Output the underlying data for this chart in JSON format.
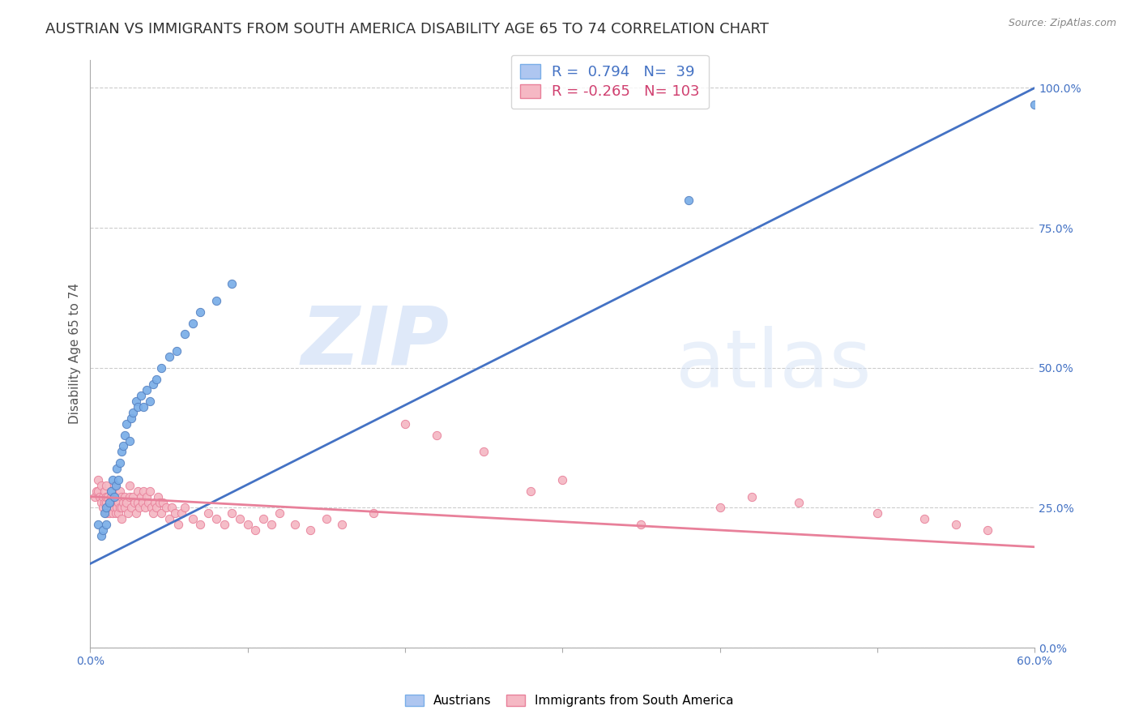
{
  "title": "AUSTRIAN VS IMMIGRANTS FROM SOUTH AMERICA DISABILITY AGE 65 TO 74 CORRELATION CHART",
  "source": "Source: ZipAtlas.com",
  "ylabel": "Disability Age 65 to 74",
  "legend_label1": "Austrians",
  "legend_label2": "Immigrants from South America",
  "watermark_zip": "ZIP",
  "watermark_atlas": "atlas",
  "r_blue": 0.794,
  "n_blue": 39,
  "r_pink": -0.265,
  "n_pink": 103,
  "blue_scatter_x": [
    0.005,
    0.007,
    0.008,
    0.009,
    0.01,
    0.01,
    0.012,
    0.013,
    0.014,
    0.015,
    0.016,
    0.017,
    0.018,
    0.019,
    0.02,
    0.021,
    0.022,
    0.023,
    0.025,
    0.026,
    0.027,
    0.029,
    0.03,
    0.032,
    0.034,
    0.036,
    0.038,
    0.04,
    0.042,
    0.045,
    0.05,
    0.055,
    0.06,
    0.065,
    0.07,
    0.08,
    0.09,
    0.38,
    0.6
  ],
  "blue_scatter_y": [
    0.22,
    0.2,
    0.21,
    0.24,
    0.22,
    0.25,
    0.26,
    0.28,
    0.3,
    0.27,
    0.29,
    0.32,
    0.3,
    0.33,
    0.35,
    0.36,
    0.38,
    0.4,
    0.37,
    0.41,
    0.42,
    0.44,
    0.43,
    0.45,
    0.43,
    0.46,
    0.44,
    0.47,
    0.48,
    0.5,
    0.52,
    0.53,
    0.56,
    0.58,
    0.6,
    0.62,
    0.65,
    0.8,
    0.97
  ],
  "pink_scatter_x": [
    0.003,
    0.004,
    0.005,
    0.005,
    0.006,
    0.007,
    0.007,
    0.008,
    0.008,
    0.009,
    0.009,
    0.01,
    0.01,
    0.01,
    0.01,
    0.011,
    0.011,
    0.012,
    0.012,
    0.013,
    0.013,
    0.014,
    0.014,
    0.015,
    0.015,
    0.015,
    0.016,
    0.016,
    0.017,
    0.017,
    0.018,
    0.018,
    0.019,
    0.019,
    0.02,
    0.02,
    0.02,
    0.021,
    0.022,
    0.022,
    0.023,
    0.024,
    0.025,
    0.025,
    0.026,
    0.027,
    0.028,
    0.029,
    0.03,
    0.03,
    0.031,
    0.032,
    0.033,
    0.034,
    0.035,
    0.036,
    0.037,
    0.038,
    0.039,
    0.04,
    0.041,
    0.042,
    0.043,
    0.044,
    0.045,
    0.046,
    0.048,
    0.05,
    0.052,
    0.054,
    0.056,
    0.058,
    0.06,
    0.065,
    0.07,
    0.075,
    0.08,
    0.085,
    0.09,
    0.095,
    0.1,
    0.105,
    0.11,
    0.115,
    0.12,
    0.13,
    0.14,
    0.15,
    0.16,
    0.18,
    0.2,
    0.22,
    0.25,
    0.28,
    0.3,
    0.35,
    0.4,
    0.42,
    0.45,
    0.5,
    0.53,
    0.55,
    0.57
  ],
  "pink_scatter_y": [
    0.27,
    0.28,
    0.28,
    0.3,
    0.27,
    0.26,
    0.29,
    0.25,
    0.27,
    0.26,
    0.28,
    0.24,
    0.26,
    0.27,
    0.29,
    0.25,
    0.27,
    0.24,
    0.26,
    0.25,
    0.27,
    0.24,
    0.26,
    0.25,
    0.27,
    0.29,
    0.24,
    0.26,
    0.25,
    0.27,
    0.24,
    0.26,
    0.25,
    0.28,
    0.23,
    0.25,
    0.27,
    0.26,
    0.25,
    0.27,
    0.26,
    0.24,
    0.27,
    0.29,
    0.25,
    0.27,
    0.26,
    0.24,
    0.26,
    0.28,
    0.25,
    0.27,
    0.26,
    0.28,
    0.25,
    0.27,
    0.26,
    0.28,
    0.25,
    0.24,
    0.26,
    0.25,
    0.27,
    0.26,
    0.24,
    0.26,
    0.25,
    0.23,
    0.25,
    0.24,
    0.22,
    0.24,
    0.25,
    0.23,
    0.22,
    0.24,
    0.23,
    0.22,
    0.24,
    0.23,
    0.22,
    0.21,
    0.23,
    0.22,
    0.24,
    0.22,
    0.21,
    0.23,
    0.22,
    0.24,
    0.4,
    0.38,
    0.35,
    0.28,
    0.3,
    0.22,
    0.25,
    0.27,
    0.26,
    0.24,
    0.23,
    0.22,
    0.21
  ],
  "blue_line_x0": 0.0,
  "blue_line_x1": 0.6,
  "blue_line_y0": 0.15,
  "blue_line_y1": 1.0,
  "pink_line_x0": 0.0,
  "pink_line_x1": 0.6,
  "pink_line_y0": 0.27,
  "pink_line_y1": 0.18,
  "blue_color": "#7aaee8",
  "blue_edge": "#5580c0",
  "pink_color": "#f5b8c4",
  "pink_edge": "#e8809a",
  "blue_line_color": "#4472c4",
  "pink_line_color": "#e8809a",
  "xmin": 0.0,
  "xmax": 0.6,
  "ymin": 0.0,
  "ymax": 1.05,
  "ytick_vals": [
    0.0,
    0.25,
    0.5,
    0.75,
    1.0
  ],
  "ytick_labels": [
    "0.0%",
    "25.0%",
    "50.0%",
    "75.0%",
    "100.0%"
  ],
  "grid_color": "#cccccc",
  "background_color": "#ffffff",
  "title_fontsize": 13,
  "axis_label_fontsize": 11,
  "tick_fontsize": 10,
  "dot_size": 55
}
